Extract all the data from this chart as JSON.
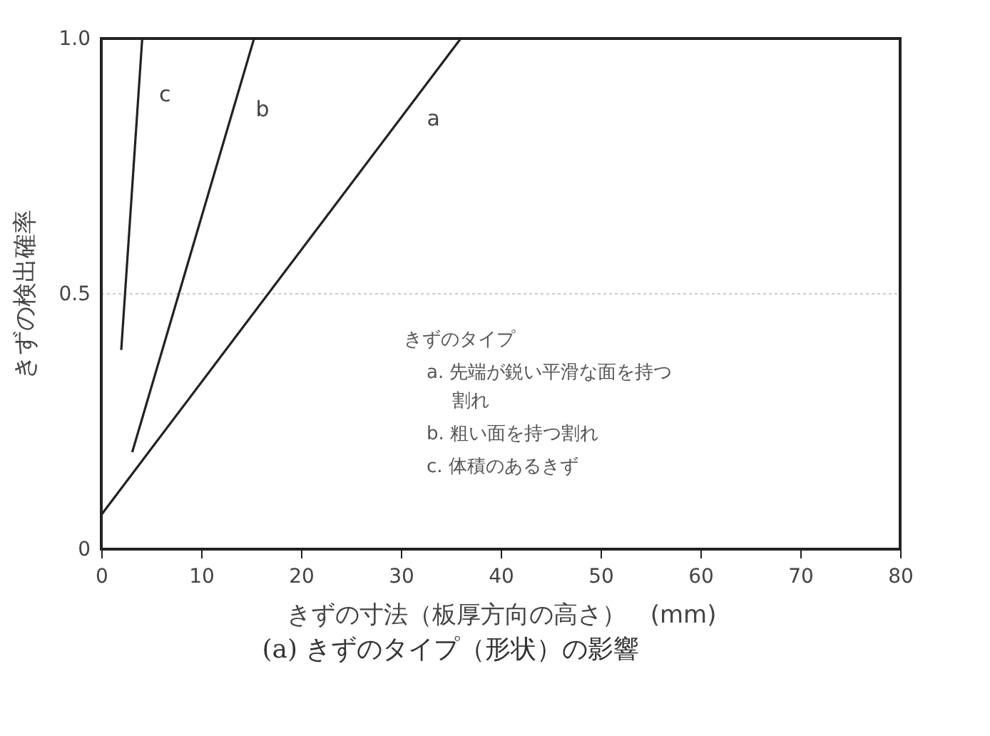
{
  "chart_data": {
    "type": "line",
    "xlabel": "きずの寸法（板厚方向の高さ）　(mm)",
    "ylabel": "きずの検出確率",
    "xlim": [
      0,
      80
    ],
    "xticks": [
      0,
      10,
      20,
      30,
      40,
      50,
      60,
      70,
      80
    ],
    "ylim": [
      0,
      1.0
    ],
    "yticks": [
      {
        "value": 0,
        "label": "0"
      },
      0.5,
      {
        "value": 1.0,
        "label": "1.0"
      }
    ],
    "grid": "y",
    "marker": "none",
    "line_style": "solid",
    "series": [
      {
        "name": "a",
        "color": "#222222",
        "x": [
          0,
          36.0
        ],
        "values": [
          0.067,
          1.0
        ]
      },
      {
        "name": "b",
        "color": "#222222",
        "x": [
          3.1,
          15.3
        ],
        "values": [
          0.19,
          1.0
        ]
      },
      {
        "name": "c",
        "color": "#222222",
        "x": [
          2.0,
          4.1
        ],
        "values": [
          0.39,
          1.0
        ]
      }
    ],
    "annotations": [
      "きずのタイプ",
      "a. 先端が鋭い平滑な面を持つ",
      "割れ",
      "b. 粗い面を持つ割れ",
      "c. 体積のあるきず",
      "(a) きずのタイプ（形状）の影響"
    ]
  }
}
